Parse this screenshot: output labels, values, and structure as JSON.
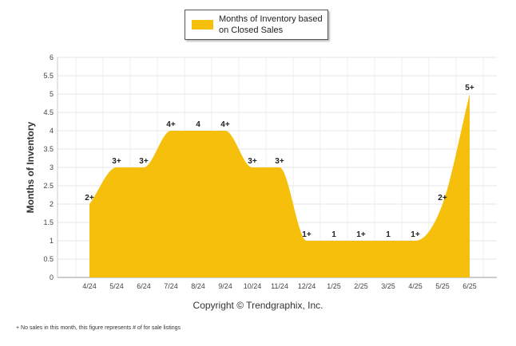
{
  "chart_data": {
    "type": "area",
    "title": "",
    "ylabel": "Months of Inventory",
    "xlabel": "",
    "ylim": [
      0,
      6
    ],
    "yticks": [
      "0",
      "0.5",
      "1",
      "1.5",
      "2",
      "2.5",
      "3",
      "3.5",
      "4",
      "4.5",
      "5",
      "5.5",
      "6"
    ],
    "categories": [
      "4/24",
      "5/24",
      "6/24",
      "7/24",
      "8/24",
      "9/24",
      "10/24",
      "11/24",
      "12/24",
      "1/25",
      "2/25",
      "3/25",
      "4/25",
      "5/25",
      "6/25"
    ],
    "series": [
      {
        "name": "Months of Inventory based on Closed Sales",
        "values": [
          2,
          3,
          3,
          4,
          4,
          4,
          3,
          3,
          1,
          1,
          1,
          1,
          1,
          2,
          5
        ],
        "labels": [
          "2+",
          "3+",
          "3+",
          "4+",
          "4",
          "4+",
          "3+",
          "3+",
          "1+",
          "1",
          "1+",
          "1",
          "1+",
          "2+",
          "5+"
        ]
      }
    ],
    "color": "#f5bf0c",
    "grid": true,
    "legend_position": "top-center"
  },
  "copyright": "Copyright © Trendgraphix, Inc.",
  "footnote": "+ No sales in this month, this figure represents # of for sale listings"
}
